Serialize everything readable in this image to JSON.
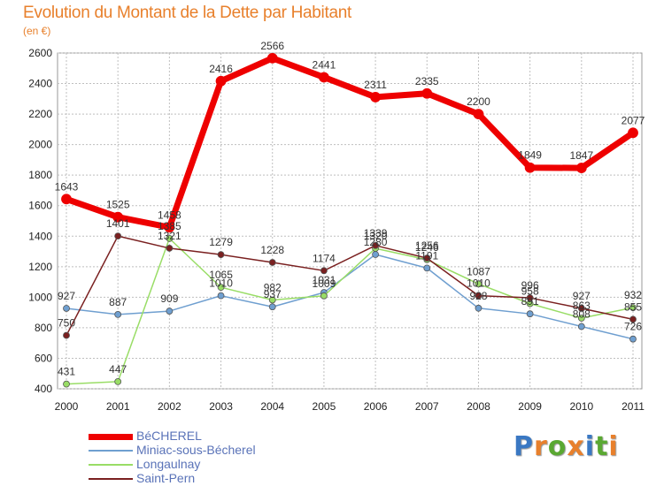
{
  "title": "Evolution du Montant de la Dette par Habitant",
  "subtitle": "(en €)",
  "colors": {
    "title": "#e8802c",
    "grid": "#bfbfbf",
    "axis_text": "#222222",
    "label_text": "#333333",
    "legend_text": "#5a73b8"
  },
  "logo": {
    "text": "Proxiti",
    "letters": [
      "P",
      "r",
      "o",
      "x",
      "i",
      "t",
      "i"
    ],
    "colors": [
      "#3a78c3",
      "#e8802c",
      "#5aa832",
      "#e8802c",
      "#3a78c3",
      "#5aa832",
      "#e8802c"
    ]
  },
  "chart_data": {
    "type": "line",
    "x": [
      "2000",
      "2001",
      "2002",
      "2003",
      "2004",
      "2005",
      "2006",
      "2007",
      "2008",
      "2009",
      "2010",
      "2011"
    ],
    "ylim": [
      400,
      2600
    ],
    "yticks": [
      "400",
      "600",
      "800",
      "1000",
      "1200",
      "1400",
      "1600",
      "1800",
      "2000",
      "2200",
      "2400",
      "2600"
    ],
    "grid": true,
    "legend_position": "bottom-left",
    "series": [
      {
        "name": "BéCHEREL",
        "color": "#ee0000",
        "width": 7,
        "values": [
          1643,
          1525,
          1458,
          2416,
          2566,
          2441,
          2311,
          2335,
          2200,
          1849,
          1847,
          2077
        ],
        "labels": [
          "1643",
          "1525",
          "1458",
          "2416",
          "2566",
          "2441",
          "2311",
          "2335",
          "2200",
          "1849",
          "1847",
          "2077"
        ]
      },
      {
        "name": "Miniac-sous-Bécherel",
        "color": "#6f9fd0",
        "width": 1.5,
        "values": [
          927,
          887,
          909,
          1010,
          937,
          1031,
          1280,
          1191,
          928,
          891,
          808,
          726
        ],
        "labels": [
          "927",
          "887",
          "909",
          "1010",
          "937",
          "1031",
          "1280",
          "1191",
          "928",
          "891",
          "808",
          "726"
        ]
      },
      {
        "name": "Longaulnay",
        "color": "#99dd66",
        "width": 1.5,
        "values": [
          431,
          447,
          1385,
          1065,
          982,
          1009,
          1320,
          1246,
          1087,
          958,
          863,
          932
        ],
        "labels": [
          "431",
          "447",
          "1385",
          "1065",
          "982",
          "1009",
          "1320",
          "1246",
          "1087",
          "958",
          "863",
          "932"
        ]
      },
      {
        "name": "Saint-Pern",
        "color": "#7a2020",
        "width": 1.5,
        "values": [
          750,
          1401,
          1321,
          1279,
          1228,
          1174,
          1339,
          1256,
          1010,
          996,
          927,
          855
        ],
        "labels": [
          "750",
          "1401",
          "1321",
          "1279",
          "1228",
          "1174",
          "1339",
          "1256",
          "1010",
          "996",
          "927",
          "855"
        ]
      }
    ]
  }
}
